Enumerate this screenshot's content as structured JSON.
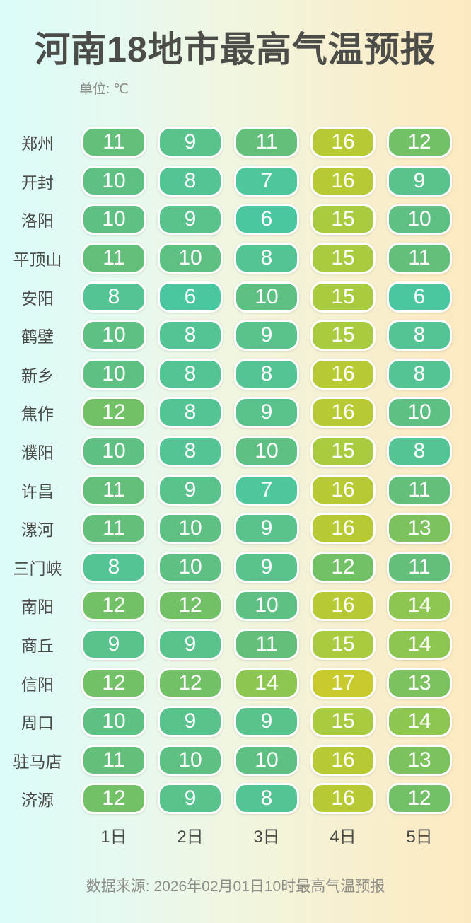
{
  "header": {
    "title": "河南18地市最高气温预报",
    "unit_label": "单位: ℃"
  },
  "footer": {
    "source": "数据来源: 2026年02月01日10时最高气温预报"
  },
  "chart_data": {
    "type": "heatmap",
    "title": "河南18地市最高气温预报",
    "unit": "℃",
    "columns": [
      "1日",
      "2日",
      "3日",
      "4日",
      "5日"
    ],
    "rows": [
      "郑州",
      "开封",
      "洛阳",
      "平顶山",
      "安阳",
      "鹤壁",
      "新乡",
      "焦作",
      "濮阳",
      "许昌",
      "漯河",
      "三门峡",
      "南阳",
      "商丘",
      "信阳",
      "周口",
      "驻马店",
      "济源"
    ],
    "values": [
      [
        11,
        9,
        11,
        16,
        12
      ],
      [
        10,
        8,
        7,
        16,
        9
      ],
      [
        10,
        9,
        6,
        15,
        10
      ],
      [
        11,
        10,
        8,
        15,
        11
      ],
      [
        8,
        6,
        10,
        15,
        6
      ],
      [
        10,
        8,
        9,
        15,
        8
      ],
      [
        10,
        8,
        8,
        16,
        8
      ],
      [
        12,
        8,
        9,
        16,
        10
      ],
      [
        10,
        8,
        10,
        15,
        8
      ],
      [
        11,
        9,
        7,
        16,
        11
      ],
      [
        11,
        10,
        9,
        16,
        13
      ],
      [
        8,
        10,
        9,
        12,
        11
      ],
      [
        12,
        12,
        10,
        16,
        14
      ],
      [
        9,
        9,
        11,
        15,
        14
      ],
      [
        12,
        12,
        14,
        17,
        13
      ],
      [
        10,
        9,
        9,
        15,
        14
      ],
      [
        11,
        10,
        10,
        16,
        13
      ],
      [
        12,
        9,
        8,
        16,
        12
      ]
    ],
    "color_scale": {
      "6": "#4ac7a1",
      "7": "#4fc79c",
      "8": "#55c494",
      "9": "#5ac28c",
      "10": "#5fc083",
      "11": "#64bf7a",
      "12": "#73c167",
      "13": "#7cc35d",
      "14": "#8dc751",
      "15": "#a9cb40",
      "16": "#b7ca33",
      "17": "#c8cb2b"
    },
    "cell_text_color": "#ffffff",
    "legend_position": "none",
    "grid": false
  },
  "colors": {
    "background_left": "#dbfcfa",
    "background_right": "#fde9c0",
    "title_text": "#4c4c48",
    "muted_text": "#8b8b85",
    "cell_border": "#ffffff"
  }
}
